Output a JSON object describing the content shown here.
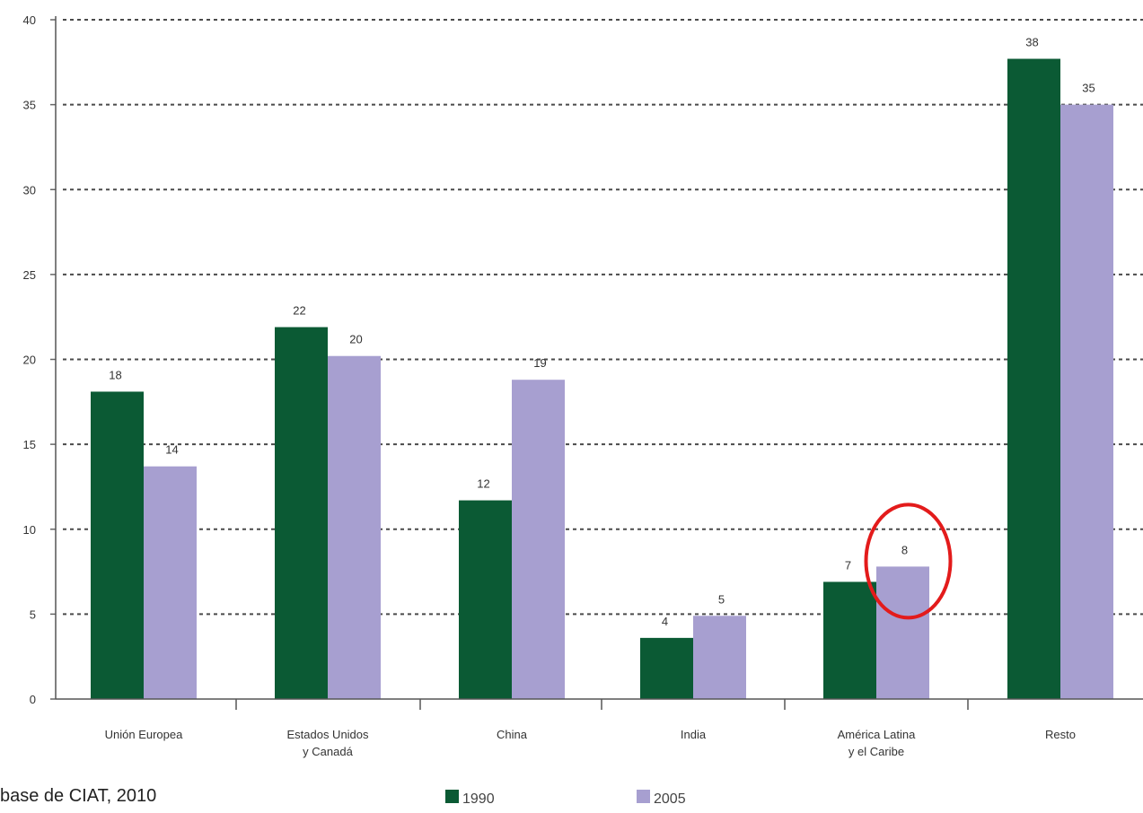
{
  "chart_data": {
    "type": "bar",
    "categories": [
      [
        "Unión Europea"
      ],
      [
        "Estados Unidos",
        "y Canadá"
      ],
      [
        "China"
      ],
      [
        "India"
      ],
      [
        "América Latina",
        "y el Caribe"
      ],
      [
        "Resto"
      ]
    ],
    "series": [
      {
        "name": "1990",
        "values": [
          18,
          22,
          12,
          4,
          7,
          38
        ],
        "bar_values": [
          18.1,
          21.9,
          11.7,
          3.6,
          6.9,
          37.7
        ],
        "color": "#0b5a34"
      },
      {
        "name": "2005",
        "values": [
          14,
          20,
          19,
          5,
          8,
          35
        ],
        "bar_values": [
          13.7,
          20.2,
          18.8,
          4.9,
          7.8,
          35.0
        ],
        "color": "#a79fd0"
      }
    ],
    "yticks": [
      0,
      5,
      10,
      15,
      20,
      25,
      30,
      35,
      40
    ],
    "ylim": [
      0,
      40
    ],
    "grid": true,
    "legend_placement": "bottom",
    "highlight": {
      "category_index": 4,
      "series_index": 1,
      "color": "#e31b1b"
    }
  },
  "source_text": "base de CIAT, 2010"
}
